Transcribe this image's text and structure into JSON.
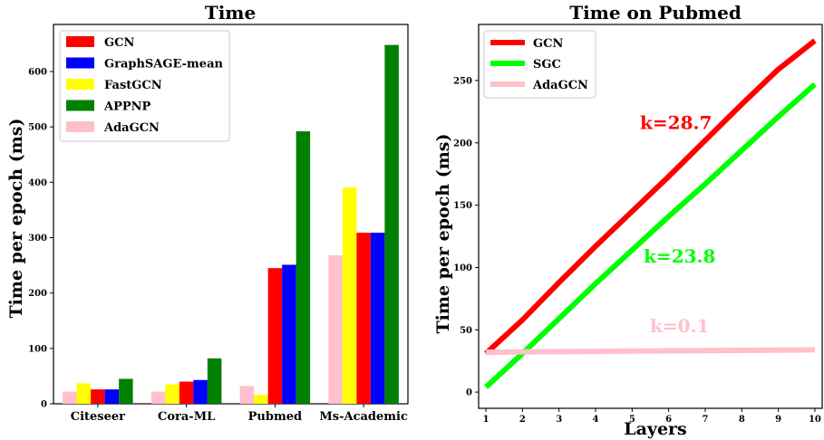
{
  "chart_data": [
    {
      "type": "bar",
      "title": "Time",
      "xlabel": "",
      "ylabel": "Time per epoch (ms)",
      "ylim": [
        0,
        685
      ],
      "yticks": [
        0,
        100,
        200,
        300,
        400,
        500,
        600
      ],
      "categories": [
        "Citeseer",
        "Cora-ML",
        "Pubmed",
        "Ms-Academic"
      ],
      "bar_order": [
        "AdaGCN",
        "FastGCN",
        "GCN",
        "GraphSAGE-mean",
        "APPNP"
      ],
      "legend_order": [
        "GCN",
        "GraphSAGE-mean",
        "FastGCN",
        "APPNP",
        "AdaGCN"
      ],
      "legend_position": "top-left",
      "grid": false,
      "series": [
        {
          "name": "GCN",
          "color": "#ff0000",
          "values": [
            26,
            40,
            245,
            309
          ]
        },
        {
          "name": "GraphSAGE-mean",
          "color": "#0000ff",
          "values": [
            26,
            43,
            251,
            309
          ]
        },
        {
          "name": "FastGCN",
          "color": "#ffff00",
          "values": [
            37,
            35,
            16,
            391
          ]
        },
        {
          "name": "APPNP",
          "color": "#008000",
          "values": [
            45,
            82,
            492,
            648
          ]
        },
        {
          "name": "AdaGCN",
          "color": "#ffc0cb",
          "values": [
            22,
            22,
            32,
            268
          ]
        }
      ]
    },
    {
      "type": "line",
      "title": "Time on Pubmed",
      "xlabel": "Layers",
      "ylabel": "Time per epoch (ms)",
      "xlim": [
        0.8,
        10.2
      ],
      "ylim": [
        -13,
        295
      ],
      "xticks": [
        1,
        2,
        3,
        4,
        5,
        6,
        7,
        8,
        9,
        10
      ],
      "yticks": [
        0,
        50,
        100,
        150,
        200,
        250
      ],
      "legend_position": "top-left",
      "grid": false,
      "x": [
        1,
        2,
        3,
        4,
        5,
        6,
        7,
        8,
        9,
        10
      ],
      "series": [
        {
          "name": "GCN",
          "color": "#ff0000",
          "values": [
            31,
            58,
            88,
            117,
            145,
            173,
            202,
            231,
            259,
            282
          ]
        },
        {
          "name": "SGC",
          "color": "#00ff00",
          "values": [
            4,
            31,
            59,
            87,
            114,
            141,
            167,
            194,
            221,
            247
          ]
        },
        {
          "name": "AdaGCN",
          "color": "#ffc0cb",
          "values": [
            32,
            32.3,
            32.5,
            32.7,
            32.9,
            33.1,
            33.3,
            33.5,
            33.7,
            33.9
          ]
        }
      ],
      "annotations": [
        {
          "text": "k=28.7",
          "x": 6.2,
          "y": 211,
          "color": "#ff0000"
        },
        {
          "text": "k=23.8",
          "x": 6.3,
          "y": 104,
          "color": "#00ff00"
        },
        {
          "text": "k=0.1",
          "x": 6.3,
          "y": 48,
          "color": "#ffc0cb"
        }
      ]
    }
  ]
}
